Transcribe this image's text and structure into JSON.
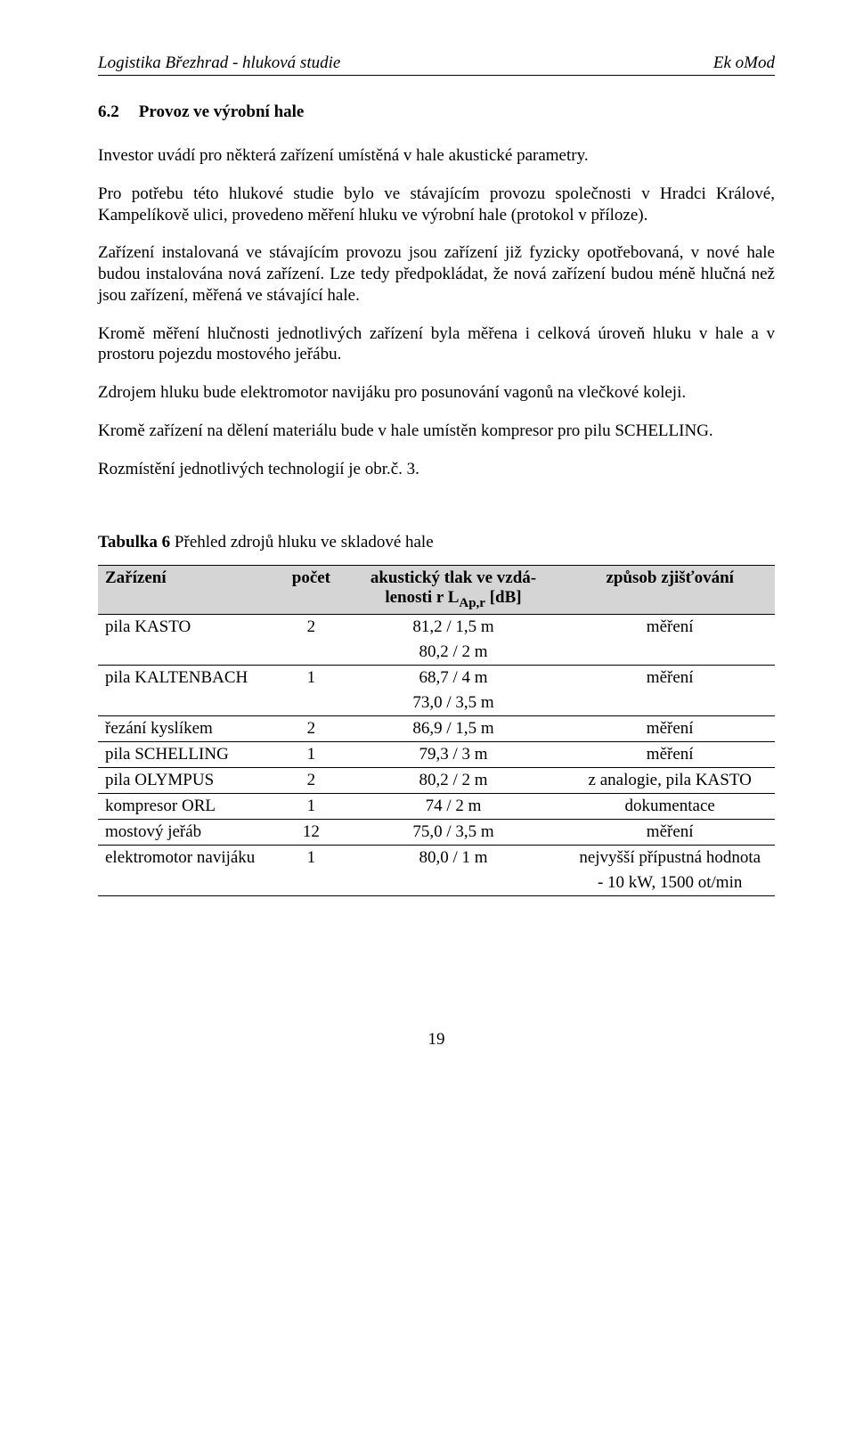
{
  "header": {
    "left": "Logistika Březhrad - hluková studie",
    "right": "Ek oMod"
  },
  "section": {
    "number": "6.2",
    "title": "Provoz ve výrobní hale"
  },
  "paragraphs": {
    "p1": "Investor uvádí pro některá zařízení umístěná v hale akustické parametry.",
    "p2": "Pro potřebu této hlukové studie bylo ve stávajícím provozu společnosti v Hradci Králové, Kampelíkově ulici, provedeno měření hluku ve výrobní hale (protokol v příloze).",
    "p3": "Zařízení instalovaná ve stávajícím provozu jsou zařízení již fyzicky opotřebovaná, v nové hale budou instalována nová zařízení. Lze tedy předpokládat, že nová zařízení budou méně hlučná než jsou zařízení, měřená ve stávající hale.",
    "p4": "Kromě měření hlučnosti jednotlivých zařízení byla měřena i celková úroveň hluku v hale a v prostoru pojezdu mostového jeřábu.",
    "p5": "Zdrojem hluku bude elektromotor navijáku pro posunování vagonů na vlečkové koleji.",
    "p6": "Kromě zařízení na dělení materiálu bude v hale umístěn kompresor pro pilu SCHELLING.",
    "p7": "Rozmístění jednotlivých technologií je obr.č. 3."
  },
  "tableCaption": {
    "bold": "Tabulka 6",
    "rest": "  Přehled zdrojů hluku ve skladové hale"
  },
  "tableHeader": {
    "c1": "Zařízení",
    "c2": "počet",
    "c3a": "akustický tlak ve vzdá-",
    "c3b": "lenosti r L",
    "c3sub": "Ap,r",
    "c3unit": " [dB]",
    "c4": "způsob zjišťování"
  },
  "rows": [
    {
      "device": "pila KASTO",
      "count": "2",
      "acoustic": "81,2 / 1,5 m",
      "method": "měření",
      "extra": "80,2 / 2 m"
    },
    {
      "device": "pila KALTENBACH",
      "count": "1",
      "acoustic": "68,7 / 4 m",
      "method": "měření",
      "extra": "73,0 / 3,5 m"
    },
    {
      "device": "řezání kyslíkem",
      "count": "2",
      "acoustic": "86,9 / 1,5 m",
      "method": "měření"
    },
    {
      "device": "pila SCHELLING",
      "count": "1",
      "acoustic": "79,3 / 3 m",
      "method": "měření"
    },
    {
      "device": "pila OLYMPUS",
      "count": "2",
      "acoustic": "80,2 / 2 m",
      "method": "z analogie, pila KASTO"
    },
    {
      "device": "kompresor ORL",
      "count": "1",
      "acoustic": "74 / 2 m",
      "method": "dokumentace"
    },
    {
      "device": "mostový jeřáb",
      "count": "12",
      "acoustic": "75,0 / 3,5 m",
      "method": "měření"
    },
    {
      "device": "elektromotor navijáku",
      "count": "1",
      "acoustic": "80,0 / 1 m",
      "method": "nejvyšší přípustná hodnota",
      "method2": "- 10 kW, 1500 ot/min"
    }
  ],
  "pageNumber": "19"
}
